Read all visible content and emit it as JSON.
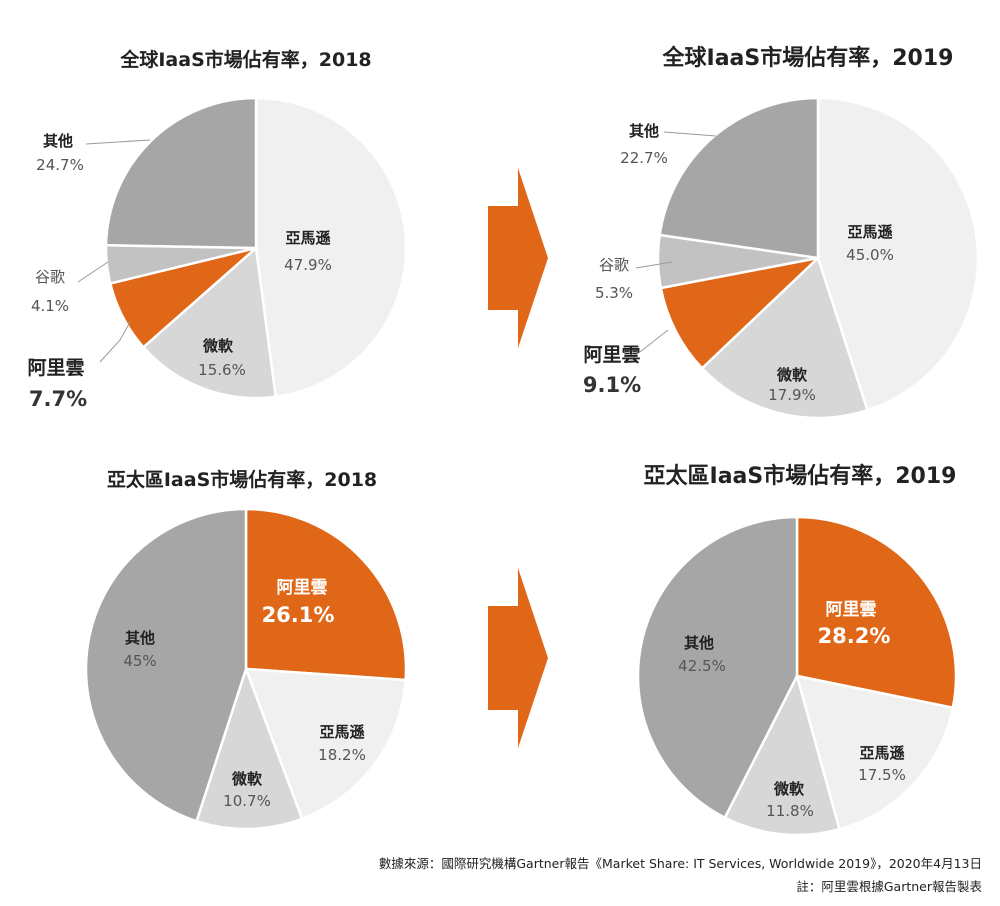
{
  "colors": {
    "accent": "#E36A1A",
    "orange": "#E06717",
    "slice_dark": "#A6A6A6",
    "slice_mid": "#C2C2C2",
    "slice_light": "#D7D7D7",
    "slice_lighter": "#F0F0F0",
    "text": "#222222",
    "subtext": "#555555"
  },
  "chart_data": [
    {
      "type": "pie",
      "title": "全球IaaS市場佔有率，2018",
      "slices": [
        {
          "label": "亞馬遜",
          "value": 47.9,
          "value_text": "47.9%",
          "color": "#F0F0F0"
        },
        {
          "label": "微軟",
          "value": 15.6,
          "value_text": "15.6%",
          "color": "#D7D7D7"
        },
        {
          "label": "阿里雲",
          "value": 7.7,
          "value_text": "7.7%",
          "color": "#E06717"
        },
        {
          "label": "谷歌",
          "value": 4.1,
          "value_text": "4.1%",
          "color": "#C2C2C2"
        },
        {
          "label": "其他",
          "value": 24.7,
          "value_text": "24.7%",
          "color": "#A6A6A6"
        }
      ]
    },
    {
      "type": "pie",
      "title": "全球IaaS市場佔有率，2019",
      "slices": [
        {
          "label": "亞馬遜",
          "value": 45.0,
          "value_text": "45.0%",
          "color": "#F0F0F0"
        },
        {
          "label": "微軟",
          "value": 17.9,
          "value_text": "17.9%",
          "color": "#D7D7D7"
        },
        {
          "label": "阿里雲",
          "value": 9.1,
          "value_text": "9.1%",
          "color": "#E06717"
        },
        {
          "label": "谷歌",
          "value": 5.3,
          "value_text": "5.3%",
          "color": "#C2C2C2"
        },
        {
          "label": "其他",
          "value": 22.7,
          "value_text": "22.7%",
          "color": "#A6A6A6"
        }
      ]
    },
    {
      "type": "pie",
      "title": "亞太區IaaS市場佔有率，2018",
      "slices": [
        {
          "label": "阿里雲",
          "value": 26.1,
          "value_text": "26.1%",
          "color": "#E06717"
        },
        {
          "label": "亞馬遜",
          "value": 18.2,
          "value_text": "18.2%",
          "color": "#F0F0F0"
        },
        {
          "label": "微軟",
          "value": 10.7,
          "value_text": "10.7%",
          "color": "#D7D7D7"
        },
        {
          "label": "其他",
          "value": 45,
          "value_text": "45%",
          "color": "#A6A6A6"
        }
      ]
    },
    {
      "type": "pie",
      "title": "亞太區IaaS市場佔有率，2019",
      "slices": [
        {
          "label": "阿里雲",
          "value": 28.2,
          "value_text": "28.2%",
          "color": "#E06717"
        },
        {
          "label": "亞馬遜",
          "value": 17.5,
          "value_text": "17.5%",
          "color": "#F0F0F0"
        },
        {
          "label": "微軟",
          "value": 11.8,
          "value_text": "11.8%",
          "color": "#D7D7D7"
        },
        {
          "label": "其他",
          "value": 42.5,
          "value_text": "42.5%",
          "color": "#A6A6A6"
        }
      ]
    }
  ],
  "footer": {
    "source": "數據來源：國際研究機構Gartner報告《Market Share: IT Services, Worldwide 2019》，2020年4月13日",
    "note": "註：阿里雲根據Gartner報告製表"
  }
}
